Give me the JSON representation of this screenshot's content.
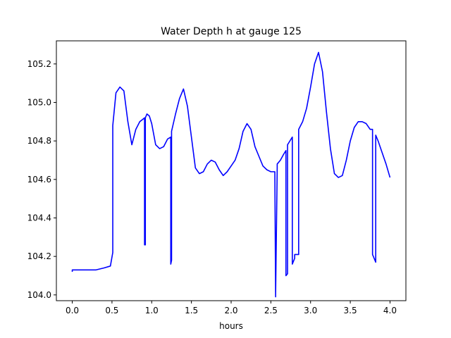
{
  "chart_data": {
    "type": "line",
    "title": "Water Depth h at gauge 125",
    "xlabel": "hours",
    "ylabel": "",
    "xlim": [
      -0.2,
      4.2
    ],
    "ylim": [
      103.97,
      105.32
    ],
    "xticks": [
      0.0,
      0.5,
      1.0,
      1.5,
      2.0,
      2.5,
      3.0,
      3.5,
      4.0
    ],
    "xtick_labels": [
      "0.0",
      "0.5",
      "1.0",
      "1.5",
      "2.0",
      "2.5",
      "3.0",
      "3.5",
      "4.0"
    ],
    "yticks": [
      104.0,
      104.2,
      104.4,
      104.6,
      104.8,
      105.0,
      105.2
    ],
    "ytick_labels": [
      "104.0",
      "104.2",
      "104.4",
      "104.6",
      "104.8",
      "105.0",
      "105.2"
    ],
    "grid": false,
    "legend": "none",
    "series": [
      {
        "color": "#0000ff",
        "x": [
          0.0,
          0.0,
          0.1,
          0.2,
          0.3,
          0.4,
          0.48,
          0.51,
          0.51,
          0.55,
          0.6,
          0.65,
          0.7,
          0.75,
          0.8,
          0.85,
          0.88,
          0.91,
          0.91,
          0.92,
          0.92,
          0.94,
          0.97,
          1.0,
          1.05,
          1.1,
          1.15,
          1.2,
          1.24,
          1.24,
          1.25,
          1.25,
          1.3,
          1.35,
          1.4,
          1.45,
          1.5,
          1.55,
          1.6,
          1.65,
          1.7,
          1.75,
          1.8,
          1.85,
          1.9,
          1.95,
          2.0,
          2.05,
          2.1,
          2.15,
          2.2,
          2.25,
          2.3,
          2.35,
          2.4,
          2.45,
          2.5,
          2.55,
          2.56,
          2.56,
          2.58,
          2.58,
          2.62,
          2.66,
          2.69,
          2.69,
          2.71,
          2.71,
          2.74,
          2.77,
          2.77,
          2.8,
          2.8,
          2.85,
          2.85,
          2.9,
          2.95,
          3.0,
          3.05,
          3.1,
          3.15,
          3.2,
          3.25,
          3.3,
          3.35,
          3.4,
          3.45,
          3.5,
          3.55,
          3.6,
          3.65,
          3.7,
          3.75,
          3.78,
          3.78,
          3.8,
          3.82,
          3.82,
          3.85,
          3.9,
          3.95,
          4.0
        ],
        "y": [
          104.12,
          104.13,
          104.13,
          104.13,
          104.13,
          104.14,
          104.15,
          104.22,
          104.88,
          105.05,
          105.08,
          105.06,
          104.9,
          104.78,
          104.86,
          104.9,
          104.91,
          104.92,
          104.26,
          104.26,
          104.92,
          104.94,
          104.93,
          104.89,
          104.78,
          104.76,
          104.77,
          104.81,
          104.82,
          104.16,
          104.18,
          104.85,
          104.94,
          105.02,
          105.07,
          104.98,
          104.82,
          104.66,
          104.63,
          104.64,
          104.68,
          104.7,
          104.69,
          104.65,
          104.62,
          104.64,
          104.67,
          104.7,
          104.76,
          104.85,
          104.89,
          104.86,
          104.77,
          104.72,
          104.67,
          104.65,
          104.64,
          104.64,
          103.99,
          104.0,
          104.66,
          104.68,
          104.7,
          104.73,
          104.75,
          104.1,
          104.11,
          104.78,
          104.8,
          104.82,
          104.16,
          104.19,
          104.21,
          104.21,
          104.86,
          104.9,
          104.97,
          105.08,
          105.2,
          105.26,
          105.16,
          104.95,
          104.76,
          104.63,
          104.61,
          104.62,
          104.7,
          104.8,
          104.87,
          104.9,
          104.9,
          104.89,
          104.86,
          104.86,
          104.21,
          104.19,
          104.17,
          104.83,
          104.8,
          104.74,
          104.68,
          104.61
        ]
      }
    ]
  }
}
